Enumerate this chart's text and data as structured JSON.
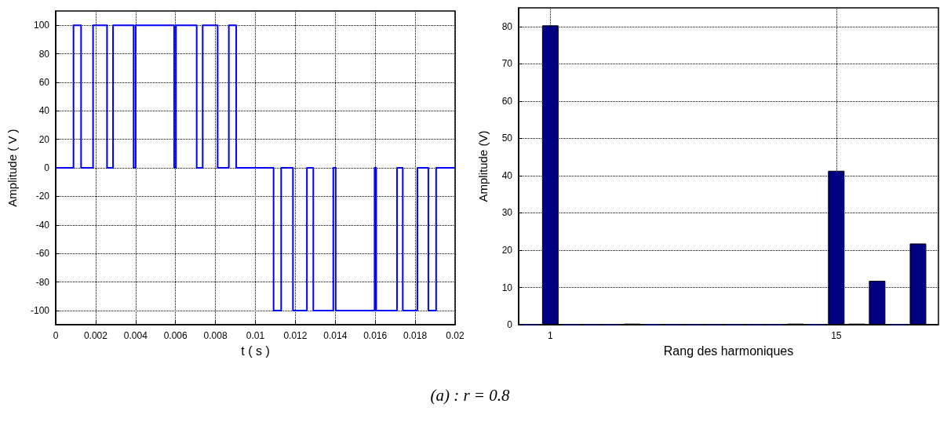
{
  "chart_data": [
    {
      "type": "step",
      "xlabel": "t ( s )",
      "ylabel": "Amplitude ( V )",
      "x": [
        0,
        0.00089,
        0.00127,
        0.00187,
        0.00257,
        0.00287,
        0.0039,
        0.004,
        0.00593,
        0.00602,
        0.00706,
        0.00736,
        0.00811,
        0.00867,
        0.00904,
        0.01091,
        0.01129,
        0.01188,
        0.01258,
        0.0129,
        0.0139,
        0.01402,
        0.01597,
        0.01605,
        0.01709,
        0.01738,
        0.01811,
        0.01866,
        0.01905,
        0.02
      ],
      "values": [
        0,
        100,
        0,
        100,
        0,
        100,
        0,
        100,
        0,
        100,
        0,
        100,
        0,
        100,
        0,
        -100,
        0,
        -100,
        0,
        -100,
        0,
        -100,
        0,
        -100,
        0,
        -100,
        0,
        -100,
        0,
        0
      ],
      "color": "#0000ff",
      "xlim": [
        0,
        0.02
      ],
      "xticks": [
        0,
        0.002,
        0.004,
        0.006,
        0.008,
        0.01,
        0.012,
        0.014,
        0.016,
        0.018,
        0.02
      ],
      "ylim": [
        -110,
        110
      ],
      "yticks": [
        -100,
        -80,
        -60,
        -40,
        -20,
        0,
        20,
        40,
        60,
        80,
        100
      ],
      "grid": true,
      "marker": "none",
      "line_style": "solid",
      "annotations": [
        "(a)  : r = 0.8"
      ]
    },
    {
      "type": "bar",
      "xlabel": "Rang des harmoniques",
      "ylabel": "Amplitude (V)",
      "x": [
        0,
        1,
        2,
        3,
        4,
        5,
        6,
        7,
        8,
        9,
        10,
        11,
        12,
        13,
        14,
        15,
        16,
        17,
        18,
        19
      ],
      "values": [
        0,
        80.3,
        0,
        0,
        0,
        0.3,
        0,
        0,
        0,
        0,
        0,
        0,
        0,
        0.3,
        0,
        41.3,
        0.3,
        11.8,
        0,
        21.8
      ],
      "color": "#000080",
      "xlim": [
        -0.55,
        20
      ],
      "xticks": [
        1,
        15
      ],
      "ylim": [
        0,
        85
      ],
      "yticks": [
        0,
        10,
        20,
        30,
        40,
        50,
        60,
        70,
        80
      ],
      "grid": true
    }
  ]
}
